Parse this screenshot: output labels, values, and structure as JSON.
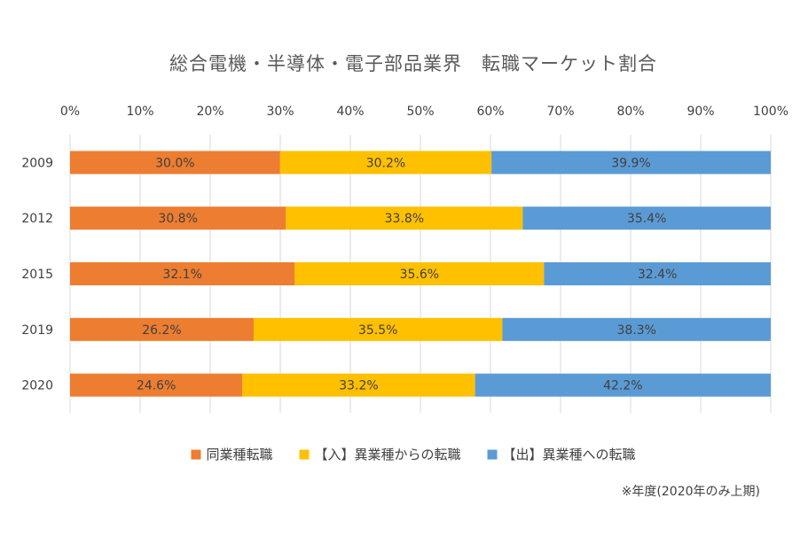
{
  "chart_data": {
    "type": "bar",
    "orientation": "horizontal",
    "stacked": "percent",
    "title": "総合電機・半導体・電子部品業界　転職マーケット割合",
    "categories": [
      "2009",
      "2012",
      "2015",
      "2019",
      "2020"
    ],
    "series": [
      {
        "name": "同業種転職",
        "color": "#ed7d31",
        "values": [
          30.0,
          30.8,
          32.1,
          26.2,
          24.6
        ]
      },
      {
        "name": "【入】異業種からの転職",
        "color": "#ffc000",
        "values": [
          30.2,
          33.8,
          35.6,
          35.5,
          33.2
        ]
      },
      {
        "name": "【出】異業種への転職",
        "color": "#5b9bd5",
        "values": [
          39.9,
          35.4,
          32.4,
          38.3,
          42.2
        ]
      }
    ],
    "x_ticks": [
      "0%",
      "10%",
      "20%",
      "30%",
      "40%",
      "50%",
      "60%",
      "70%",
      "80%",
      "90%",
      "100%"
    ],
    "xlim": [
      0,
      100
    ],
    "grid": true,
    "legend_position": "bottom",
    "note": "※年度(2020年のみ上期)"
  }
}
